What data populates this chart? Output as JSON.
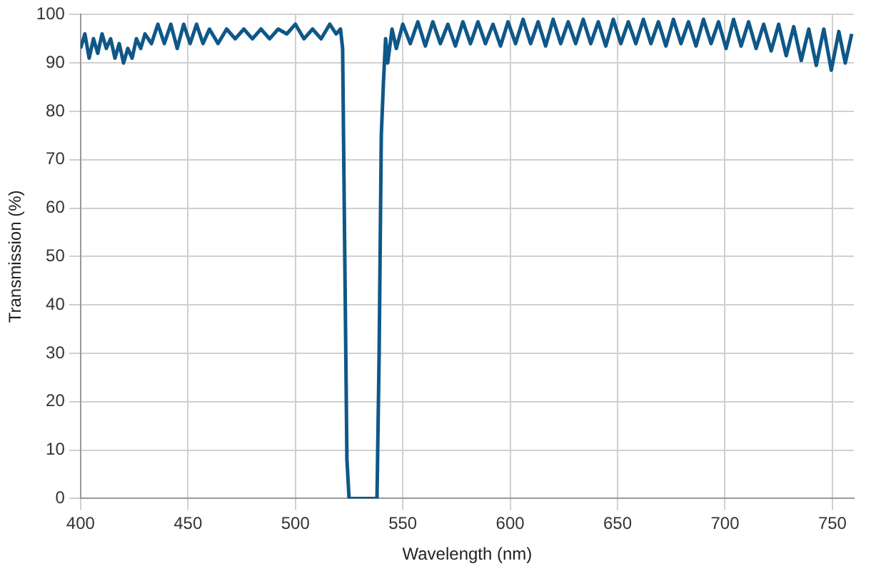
{
  "chart_data": {
    "type": "line",
    "xlabel": "Wavelength (nm)",
    "ylabel": "Transmission (%)",
    "color": "#0f5788",
    "marker": "none",
    "grid": true,
    "xlim": [
      400,
      760
    ],
    "xticks": [
      400,
      450,
      500,
      550,
      600,
      650,
      700,
      750
    ],
    "ylim": [
      0,
      100
    ],
    "yticks": [
      0,
      10,
      20,
      30,
      40,
      50,
      60,
      70,
      80,
      90,
      100
    ],
    "x": [
      400,
      402,
      404,
      406,
      408,
      410,
      412,
      414,
      416,
      418,
      420,
      422,
      424,
      426,
      428,
      430,
      433,
      436,
      439,
      442,
      445,
      448,
      451,
      454,
      457,
      460,
      464,
      468,
      472,
      476,
      480,
      484,
      488,
      492,
      496,
      500,
      504,
      508,
      512,
      516,
      519,
      521,
      522,
      523,
      524,
      525,
      538,
      539,
      540,
      541,
      542,
      543,
      545,
      547,
      550,
      553.5,
      557,
      560.5,
      564,
      567.5,
      571,
      574.5,
      578,
      581.5,
      585,
      588.5,
      592,
      595.5,
      599,
      602.5,
      606,
      609.5,
      613,
      616.5,
      620,
      623.5,
      627,
      630.5,
      634,
      637.5,
      641,
      644.5,
      648,
      651.5,
      655,
      658.5,
      662,
      665.5,
      669,
      672.5,
      676,
      679.5,
      683,
      686.5,
      690,
      693.5,
      697,
      700.5,
      704,
      707.5,
      711,
      714.5,
      718,
      721.5,
      725,
      728.5,
      732,
      735.5,
      739,
      742.5,
      746,
      749.5,
      753,
      756,
      759
    ],
    "values": [
      93,
      96,
      91,
      95,
      92,
      96,
      93,
      95,
      91,
      94,
      90,
      93,
      91,
      95,
      93,
      96,
      94,
      98,
      94,
      98,
      93,
      98,
      94,
      98,
      94,
      97,
      94,
      97,
      95,
      97,
      95,
      97,
      95,
      97,
      96,
      98,
      95,
      97,
      95,
      98,
      96,
      97,
      93,
      50,
      8,
      0,
      0,
      30,
      75,
      86,
      95,
      90,
      97,
      93,
      98,
      94,
      98.5,
      93.5,
      98.5,
      94,
      98,
      93.5,
      98.5,
      94,
      98.5,
      94,
      98,
      93.5,
      98.5,
      94,
      99,
      94,
      98.5,
      93.5,
      99,
      94,
      98.5,
      94,
      99,
      94,
      98.5,
      93.5,
      99,
      94,
      98.5,
      94,
      99,
      94,
      98.5,
      93.5,
      99,
      94,
      98.5,
      93.5,
      99,
      94,
      98.5,
      93,
      99,
      93.5,
      98.5,
      93,
      98,
      92.5,
      98,
      91.5,
      97.5,
      90.5,
      97,
      89.5,
      97,
      88.5,
      96.5,
      90,
      96
    ]
  }
}
